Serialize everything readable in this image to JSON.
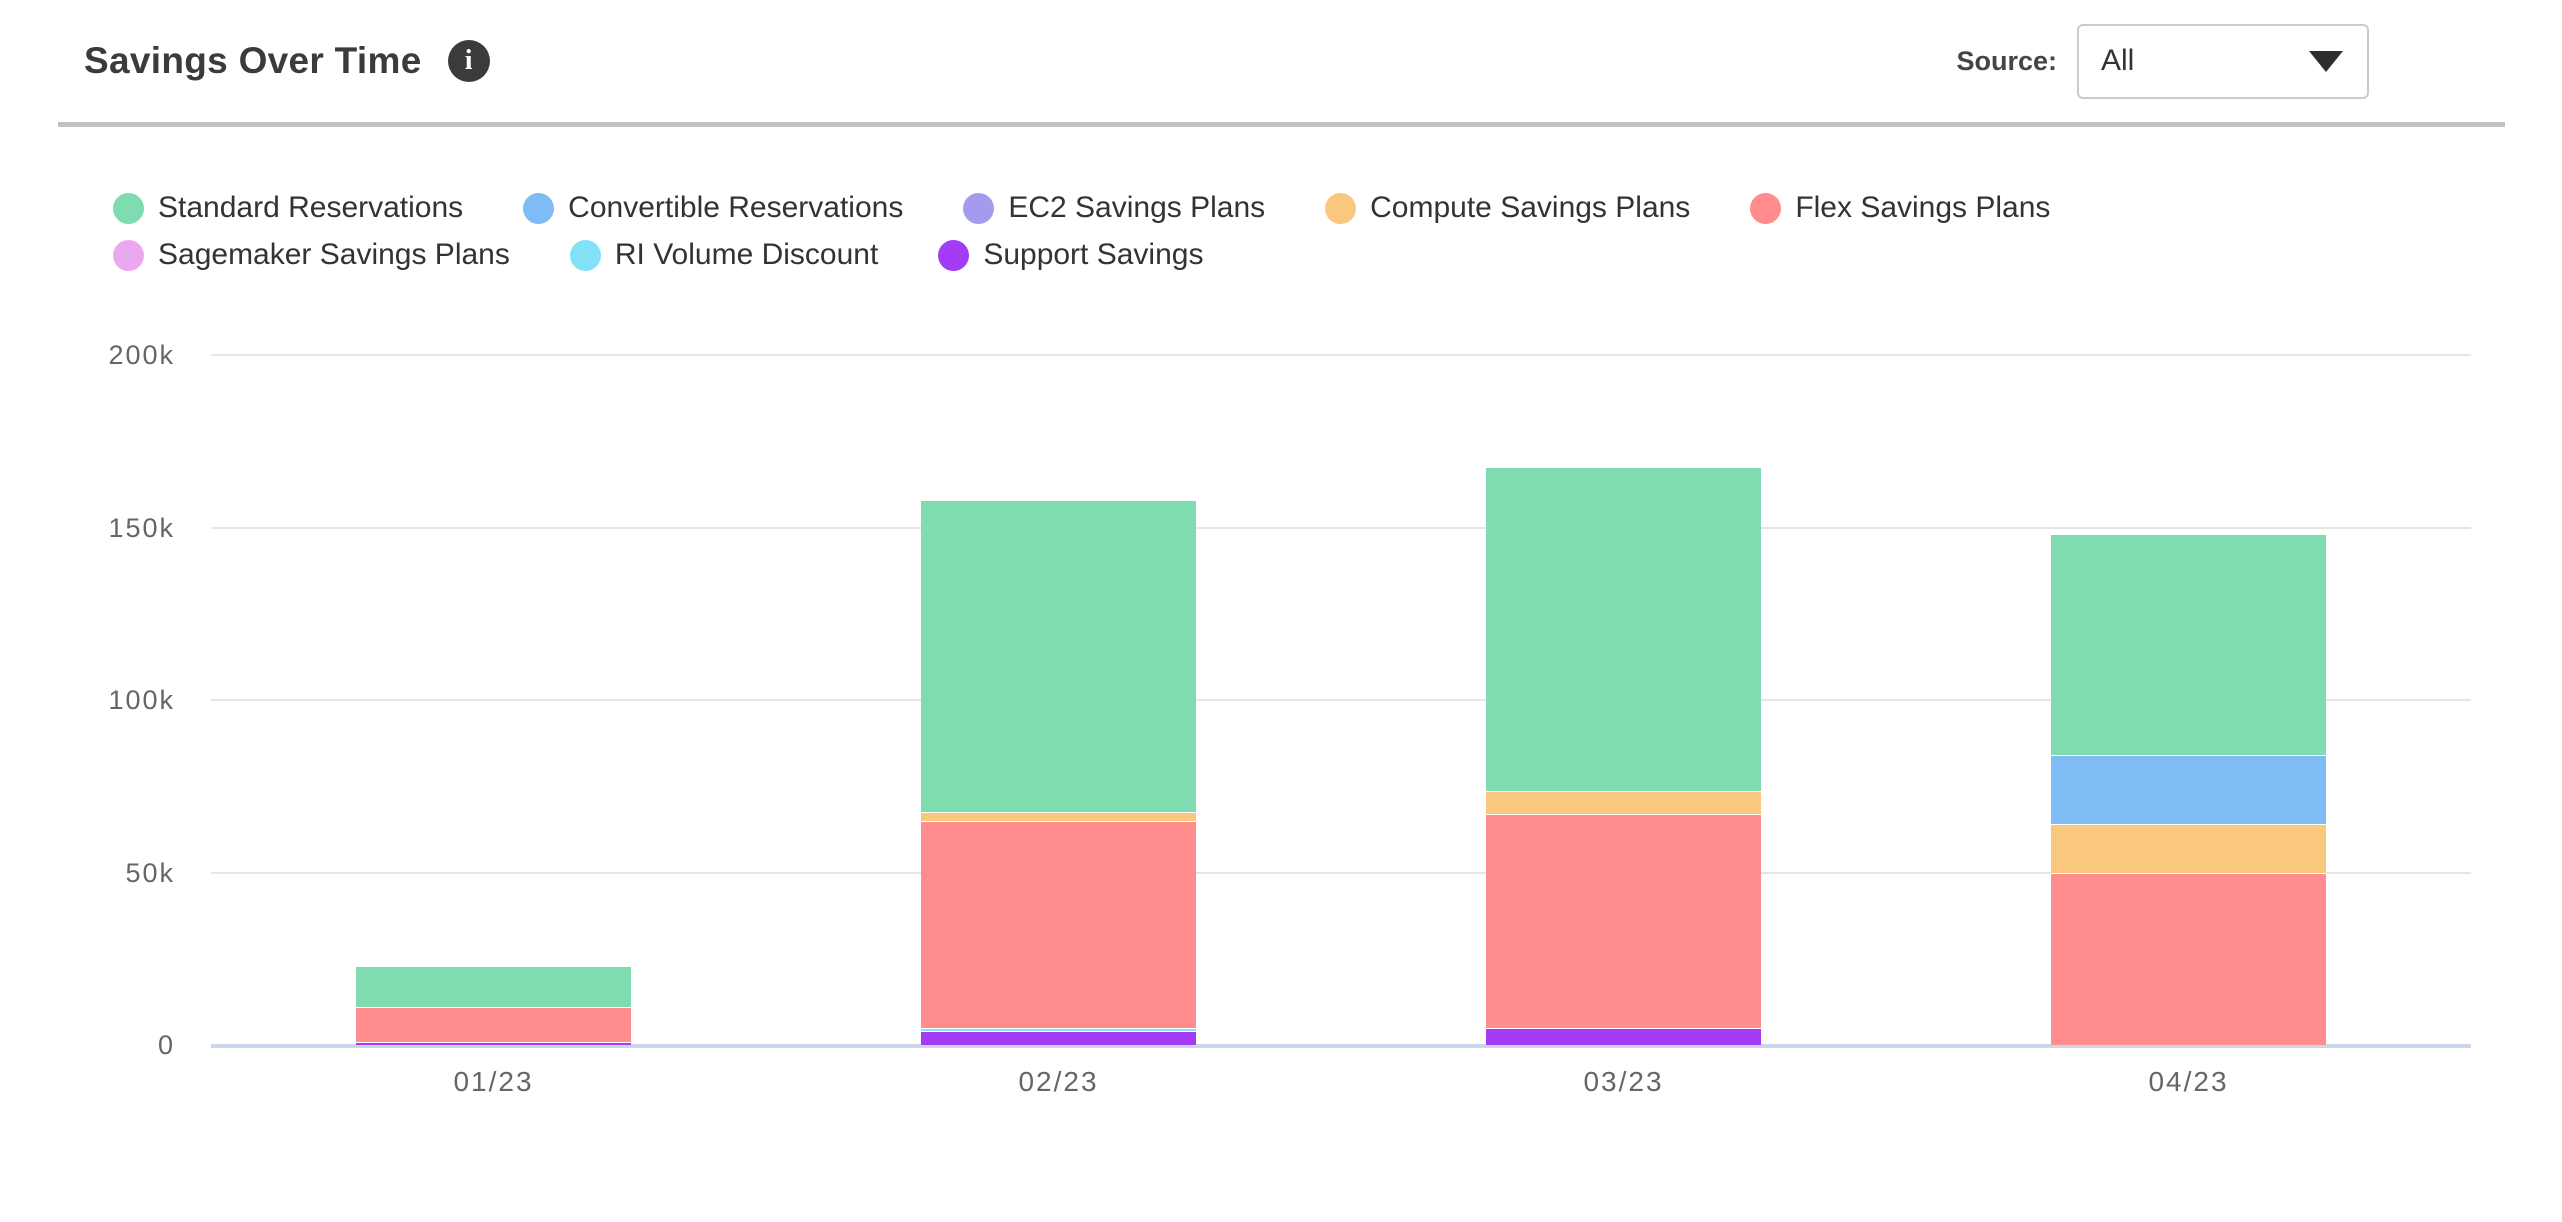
{
  "header": {
    "title": "Savings Over Time",
    "source_label": "Source:",
    "source_value": "All"
  },
  "icons": {
    "info_glyph": "i"
  },
  "chart_data": {
    "type": "bar",
    "stacked": true,
    "title": "Savings Over Time",
    "categories": [
      "01/23",
      "02/23",
      "03/23",
      "04/23"
    ],
    "series": [
      {
        "name": "Standard Reservations",
        "color": "#7EDCB0",
        "values": [
          12000,
          90500,
          94000,
          64000
        ]
      },
      {
        "name": "Convertible Reservations",
        "color": "#7FBCF6",
        "values": [
          0,
          0,
          0,
          20000
        ]
      },
      {
        "name": "EC2 Savings Plans",
        "color": "#A49BEF",
        "values": [
          0,
          0,
          0,
          0
        ]
      },
      {
        "name": "Compute Savings Plans",
        "color": "#F9C77E",
        "values": [
          0,
          2500,
          6500,
          14000
        ]
      },
      {
        "name": "Flex Savings Plans",
        "color": "#FF8D8D",
        "values": [
          10000,
          60000,
          62000,
          50000
        ]
      },
      {
        "name": "Sagemaker Savings Plans",
        "color": "#ECA8EF",
        "values": [
          0,
          0,
          0,
          0
        ]
      },
      {
        "name": "RI Volume Discount",
        "color": "#82E3F8",
        "values": [
          0,
          1000,
          0,
          0
        ]
      },
      {
        "name": "Support Savings",
        "color": "#A43CF6",
        "values": [
          1000,
          4000,
          5000,
          0
        ]
      }
    ],
    "stack_order": "bottom-to-top is reverse of series list (Support Savings at bottom, Standard Reservations on top)",
    "totals": [
      23000,
      158000,
      167500,
      148000
    ],
    "yticks": [
      {
        "value": 0,
        "label": "0"
      },
      {
        "value": 50000,
        "label": "50k"
      },
      {
        "value": 100000,
        "label": "100k"
      },
      {
        "value": 150000,
        "label": "150k"
      },
      {
        "value": 200000,
        "label": "200k"
      }
    ],
    "ylim": [
      0,
      200000
    ],
    "xlabel": "",
    "ylabel": "",
    "grid": true,
    "legend_position": "top-left, two rows"
  },
  "colors": {
    "axis_line": "#CCD6EB",
    "grid_line": "#E6E6E6",
    "tick_label": "#666666",
    "legend_text": "#333333",
    "title_text": "#3B3B3B",
    "header_divider": "#C2C2C2"
  }
}
